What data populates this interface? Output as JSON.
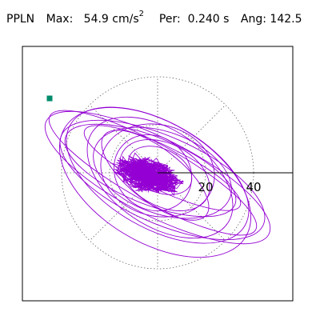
{
  "header": {
    "station": "PPLN",
    "max_label": "Max:",
    "max_value": "54.9 cm/s",
    "max_exp": "2",
    "per_label": "Per:",
    "per_value": "0.240 s",
    "ang_label": "Ang:",
    "ang_value": "142.5"
  },
  "chart_data": {
    "type": "scatter",
    "subtype": "particle-motion-polar",
    "title": "",
    "xlabel": "",
    "ylabel": "",
    "ring_labels": [
      "20",
      "40"
    ],
    "rings": [
      20,
      40
    ],
    "radial_directions_deg": [
      0,
      45,
      90,
      135,
      180,
      225,
      270,
      315
    ],
    "xlim": [
      -60,
      60
    ],
    "ylim": [
      -60,
      60
    ],
    "grid": true,
    "colors": {
      "trace": "#9400d3",
      "grid": "#666666",
      "marker": "#008b6b"
    },
    "series": [
      {
        "type": "orbit-trace",
        "start_point": [
          -45,
          31
        ],
        "ellipses": [
          {
            "semi_major": 52,
            "semi_minor": 16,
            "angle_deg": -27,
            "cx": 0,
            "cy": -2
          },
          {
            "semi_major": 49,
            "semi_minor": 12,
            "angle_deg": -29,
            "cx": -2,
            "cy": 0
          },
          {
            "semi_major": 46,
            "semi_minor": 18,
            "angle_deg": -24,
            "cx": 2,
            "cy": -3
          },
          {
            "semi_major": 42,
            "semi_minor": 22,
            "angle_deg": -30,
            "cx": 0,
            "cy": -1
          },
          {
            "semi_major": 38,
            "semi_minor": 14,
            "angle_deg": -22,
            "cx": -3,
            "cy": 1
          },
          {
            "semi_major": 34,
            "semi_minor": 20,
            "angle_deg": -34,
            "cx": 1,
            "cy": -2
          },
          {
            "semi_major": 30,
            "semi_minor": 17,
            "angle_deg": -20,
            "cx": 2,
            "cy": 0
          },
          {
            "semi_major": 27,
            "semi_minor": 11,
            "angle_deg": -38,
            "cx": -1,
            "cy": -1
          },
          {
            "semi_major": 24,
            "semi_minor": 19,
            "angle_deg": -15,
            "cx": 0,
            "cy": 1
          },
          {
            "semi_major": 20,
            "semi_minor": 13,
            "angle_deg": -28,
            "cx": 3,
            "cy": -1
          },
          {
            "semi_major": 17,
            "semi_minor": 15,
            "angle_deg": -40,
            "cx": -2,
            "cy": 0
          },
          {
            "semi_major": 14,
            "semi_minor": 9,
            "angle_deg": -25,
            "cx": 1,
            "cy": 1
          },
          {
            "semi_major": 44,
            "semi_minor": 25,
            "angle_deg": -31,
            "cx": -1,
            "cy": -4
          },
          {
            "semi_major": 36,
            "semi_minor": 9,
            "angle_deg": -26,
            "cx": 2,
            "cy": 2
          }
        ]
      }
    ]
  }
}
